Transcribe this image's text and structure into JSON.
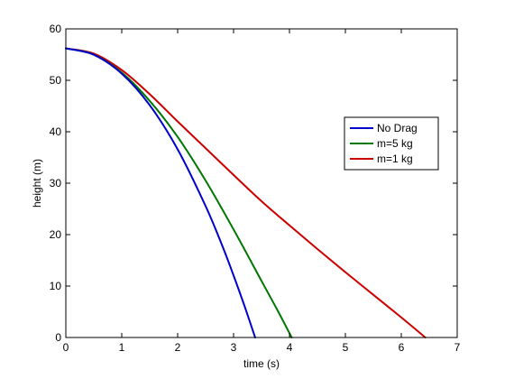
{
  "chart_data": {
    "type": "line",
    "title": "",
    "xlabel": "time (s)",
    "ylabel": "height (m)",
    "xlim": [
      0,
      7
    ],
    "ylim": [
      0,
      60
    ],
    "xticks": [
      0,
      1,
      2,
      3,
      4,
      5,
      6,
      7
    ],
    "yticks": [
      0,
      10,
      20,
      30,
      40,
      50,
      60
    ],
    "grid": false,
    "legend_position": "right",
    "series": [
      {
        "name": "No Drag",
        "color": "#0000cc",
        "x": [
          0,
          0.5,
          1.0,
          1.5,
          2.0,
          2.5,
          2.8,
          3.0,
          3.2,
          3.386
        ],
        "y": [
          56.2,
          54.97,
          51.3,
          45.17,
          36.58,
          25.55,
          17.78,
          12.06,
          6.0,
          0
        ]
      },
      {
        "name": "m=5 kg",
        "color": "#007700",
        "x": [
          0,
          0.5,
          1.0,
          1.5,
          2.0,
          2.5,
          3.0,
          3.5,
          3.8,
          4.04
        ],
        "y": [
          56.2,
          55.0,
          51.5,
          46.0,
          39.0,
          30.5,
          21.0,
          11.0,
          5.0,
          0
        ]
      },
      {
        "name": "m=1 kg",
        "color": "#cc0000",
        "x": [
          0,
          0.5,
          1.0,
          1.5,
          2.0,
          2.5,
          3.0,
          3.5,
          4.0,
          4.5,
          5.0,
          5.5,
          6.0,
          6.43
        ],
        "y": [
          56.2,
          55.2,
          52.0,
          47.3,
          42.0,
          36.8,
          31.6,
          26.5,
          21.8,
          17.2,
          12.7,
          8.3,
          3.9,
          0
        ]
      }
    ]
  }
}
